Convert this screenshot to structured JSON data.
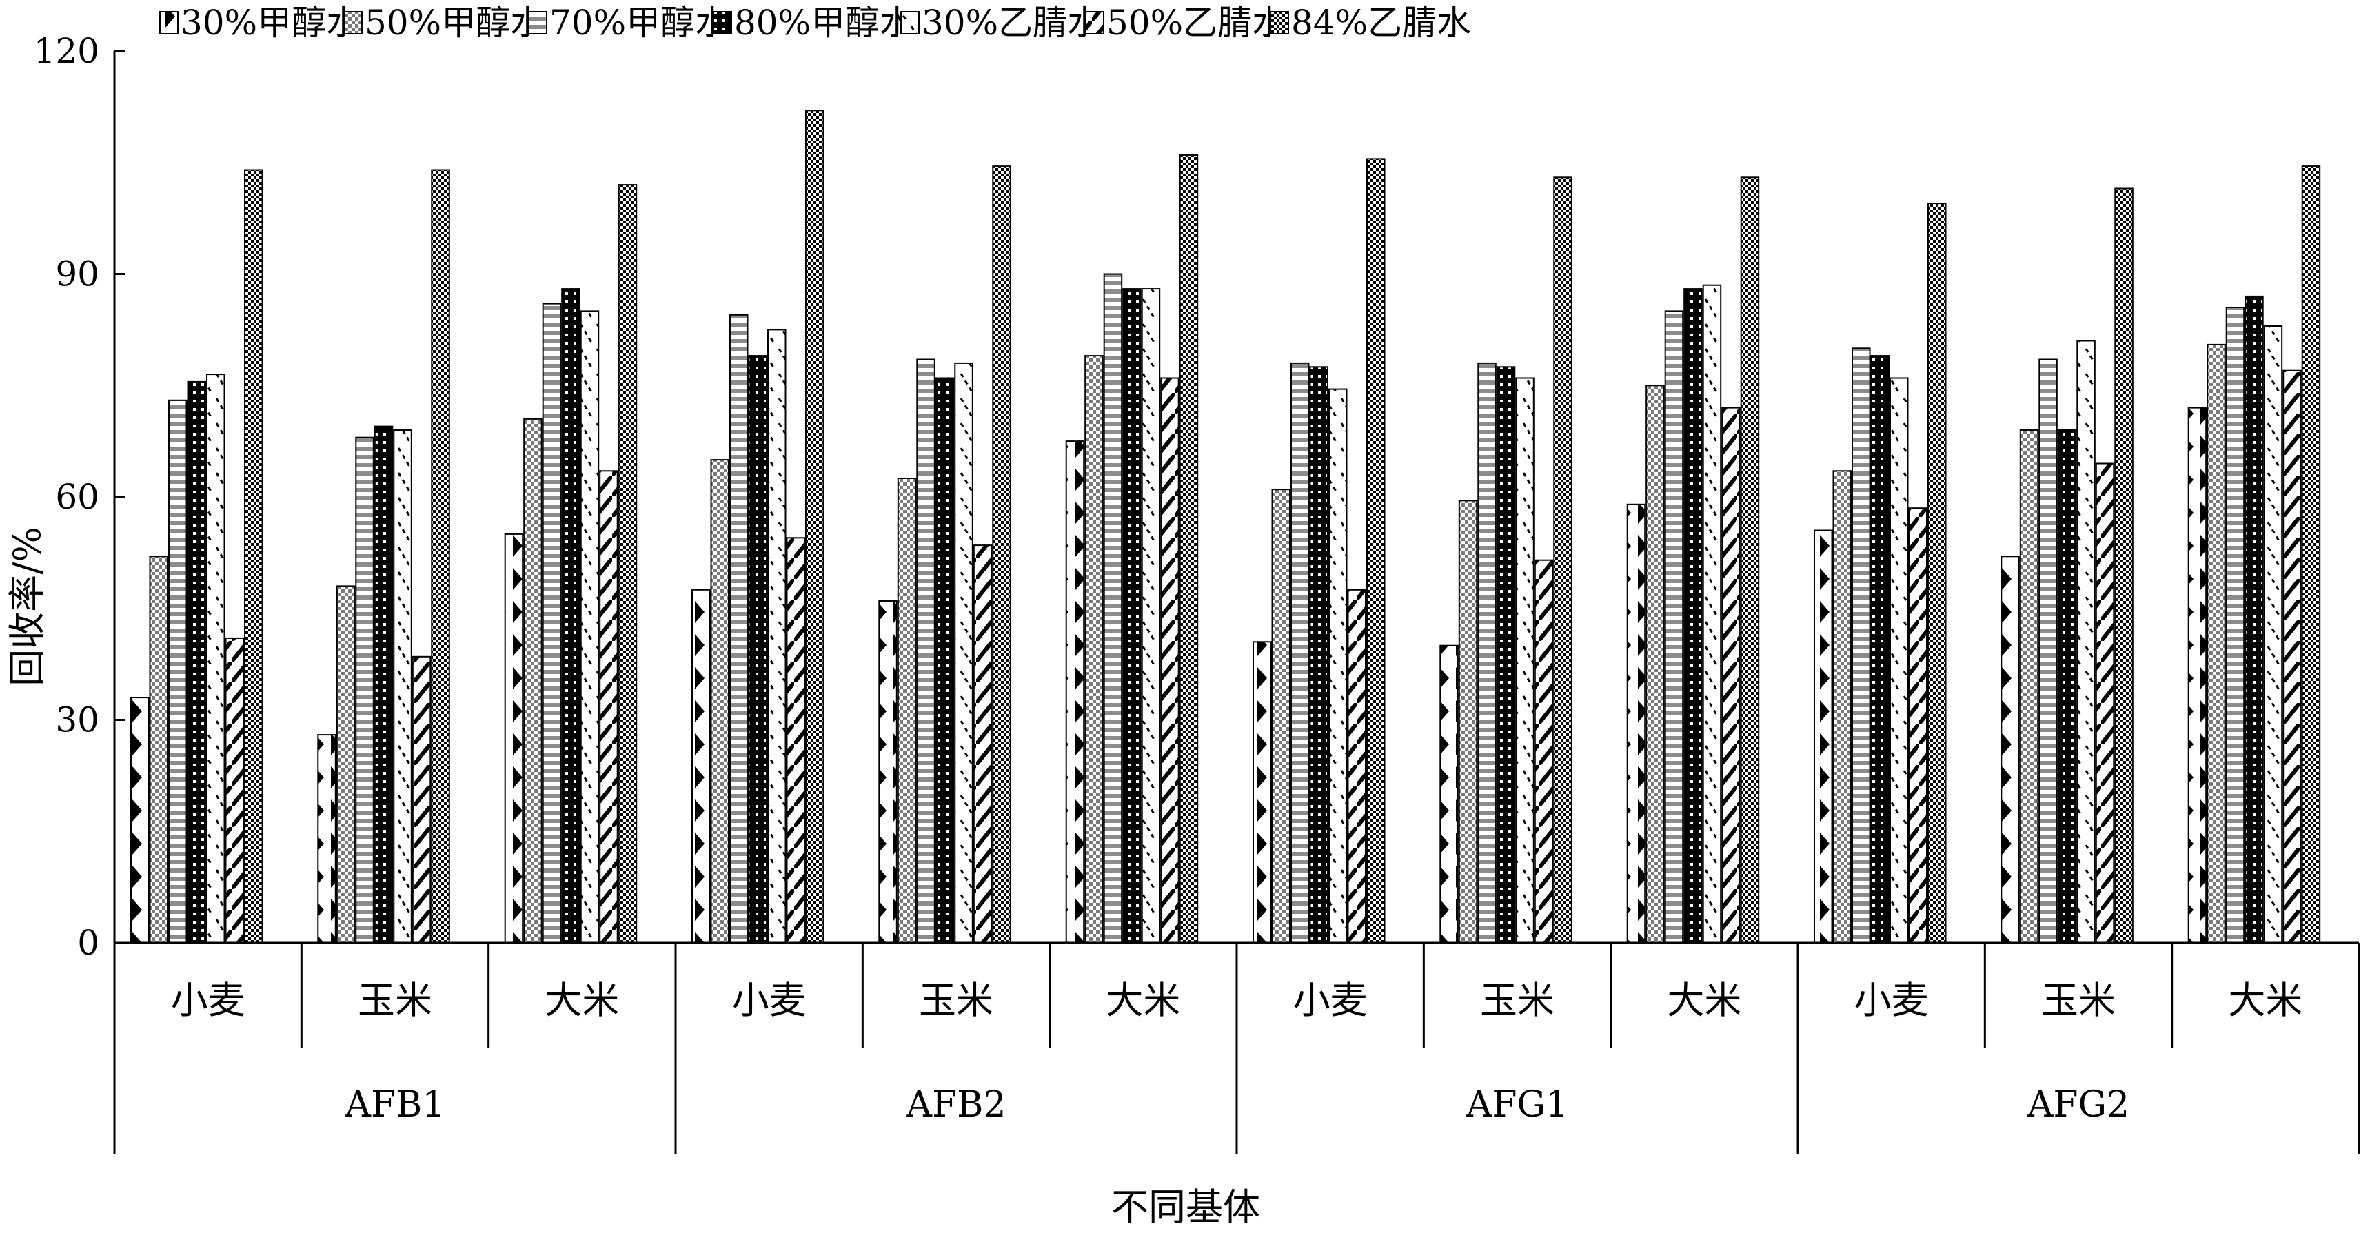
{
  "chart_data": {
    "type": "bar",
    "title": "",
    "ylabel": "回收率/%",
    "xlabel": "不同基体",
    "ylim": [
      0,
      120
    ],
    "yticks": [
      0,
      30,
      60,
      90,
      120
    ],
    "legend_position": "top",
    "groups": [
      "AFB1",
      "AFB2",
      "AFG1",
      "AFG2"
    ],
    "subcategories": [
      "小麦",
      "玉米",
      "大米"
    ],
    "categories": [
      "AFB1 小麦",
      "AFB1 玉米",
      "AFB1 大米",
      "AFB2 小麦",
      "AFB2 玉米",
      "AFB2 大米",
      "AFG1 小麦",
      "AFG1 玉米",
      "AFG1 大米",
      "AFG2 小麦",
      "AFG2 玉米",
      "AFG2 大米"
    ],
    "series": [
      {
        "name": "30%甲醇水",
        "pattern": "arrows",
        "values": [
          33,
          28,
          55,
          47.5,
          46,
          67.5,
          40.5,
          40,
          59,
          55.5,
          52,
          72
        ]
      },
      {
        "name": "50%甲醇水",
        "pattern": "checker",
        "values": [
          52,
          48,
          70.5,
          65,
          62.5,
          79,
          61,
          59.5,
          75,
          63.5,
          69,
          80.5
        ]
      },
      {
        "name": "70%甲醇水",
        "pattern": "hstripes",
        "values": [
          73,
          68,
          86,
          84.5,
          78.5,
          90,
          78,
          78,
          85,
          80,
          78.5,
          85.5
        ]
      },
      {
        "name": "80%甲醇水",
        "pattern": "blackdots",
        "values": [
          75.5,
          69.5,
          88,
          79,
          76,
          88,
          77.5,
          77.5,
          88,
          79,
          69,
          87
        ]
      },
      {
        "name": "30%乙腈水",
        "pattern": "vdiag",
        "values": [
          76.5,
          69,
          85,
          82.5,
          78,
          88,
          74.5,
          76,
          88.5,
          76,
          81,
          83
        ]
      },
      {
        "name": "50%乙腈水",
        "pattern": "diag",
        "values": [
          41,
          38.5,
          63.5,
          54.5,
          53.5,
          76,
          47.5,
          51.5,
          72,
          58.5,
          64.5,
          77
        ]
      },
      {
        "name": "84%乙腈水",
        "pattern": "dense",
        "values": [
          104,
          104,
          102,
          112,
          104.5,
          106,
          105.5,
          103,
          103,
          99.5,
          101.5,
          104.5
        ]
      }
    ]
  }
}
